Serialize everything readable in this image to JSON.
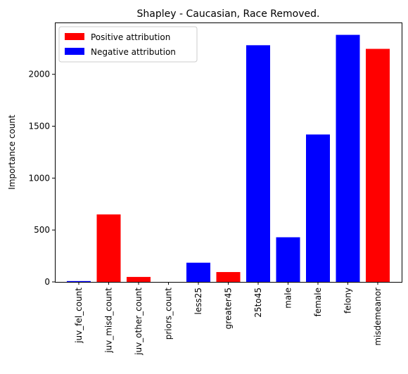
{
  "chart_data": {
    "type": "bar",
    "title": "Shapley - Caucasian, Race Removed.",
    "xlabel": "",
    "ylabel": "Importance count",
    "categories": [
      "juv_fel_count",
      "juv_misd_count",
      "juv_other_count",
      "priors_count",
      "less25",
      "greater45",
      "25to45",
      "male",
      "female",
      "felony",
      "misdemeanor"
    ],
    "values": [
      8,
      650,
      48,
      0,
      185,
      95,
      2280,
      430,
      1420,
      2380,
      2245
    ],
    "bar_attribution": [
      "negative",
      "positive",
      "positive",
      "positive",
      "negative",
      "positive",
      "negative",
      "negative",
      "negative",
      "negative",
      "positive"
    ],
    "yticks": [
      0,
      500,
      1000,
      1500,
      2000
    ],
    "ytick_labels": [
      "0",
      "500",
      "1000",
      "1500",
      "2000"
    ],
    "ylim": [
      0,
      2499
    ],
    "grid": false,
    "legend": {
      "placement": "top-left",
      "entries": [
        {
          "key": "positive",
          "label": "Positive attribution",
          "color": "#ff0000"
        },
        {
          "key": "negative",
          "label": "Negative attribution",
          "color": "#0000ff"
        }
      ]
    }
  }
}
